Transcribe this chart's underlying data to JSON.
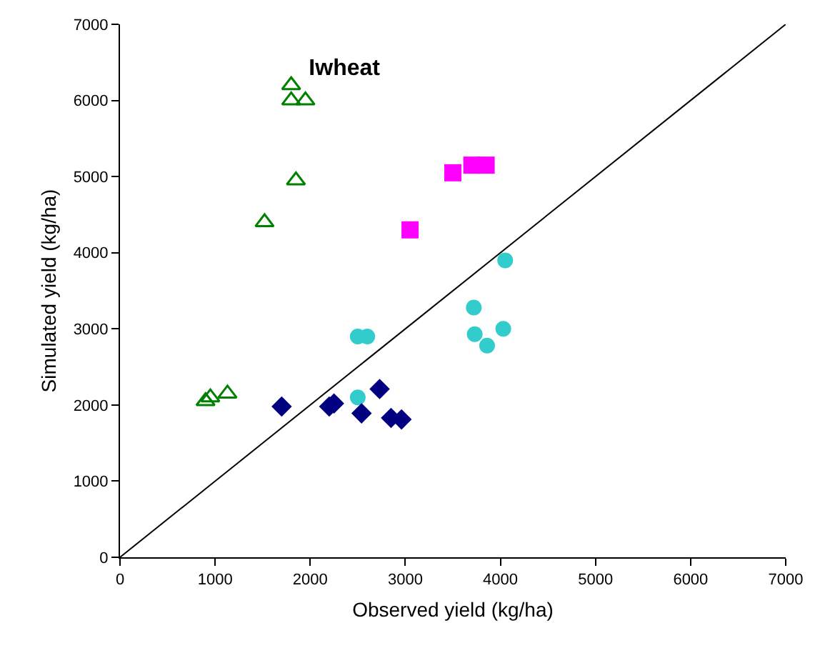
{
  "chart_data": {
    "type": "scatter",
    "title": "Iwheat",
    "xlabel": "Observed yield (kg/ha)",
    "ylabel": "Simulated yield (kg/ha)",
    "xlim": [
      0,
      7000
    ],
    "ylim": [
      0,
      7000
    ],
    "xticks": [
      0,
      1000,
      2000,
      3000,
      4000,
      5000,
      6000,
      7000
    ],
    "yticks": [
      0,
      1000,
      2000,
      3000,
      4000,
      5000,
      6000,
      7000
    ],
    "series": [
      {
        "color": "#008000",
        "marker": "triangle-open",
        "x": [
          1800,
          1800,
          1950,
          1850,
          1520,
          900,
          950,
          1130
        ],
        "values": [
          6200,
          6000,
          6000,
          4950,
          4400,
          2050,
          2100,
          2150
        ]
      },
      {
        "color": "#ff00ff",
        "marker": "square",
        "x": [
          3500,
          3700,
          3850,
          3050
        ],
        "values": [
          5050,
          5150,
          5150,
          4300
        ]
      },
      {
        "color": "#33cccc",
        "marker": "circle",
        "x": [
          2500,
          2600,
          2500,
          4050,
          3720,
          3730,
          3860,
          4030
        ],
        "values": [
          2900,
          2900,
          2100,
          3900,
          3280,
          2930,
          2780,
          3000
        ]
      },
      {
        "color": "#000080",
        "marker": "diamond",
        "x": [
          1700,
          2200,
          2250,
          2540,
          2730,
          2850,
          2960
        ],
        "values": [
          1980,
          1980,
          2020,
          1890,
          2210,
          1830,
          1810
        ]
      },
      {
        "type": "line",
        "color": "#000000",
        "marker": "none",
        "line_style": "solid",
        "x": [
          0,
          7000
        ],
        "values": [
          0,
          7000
        ]
      }
    ]
  }
}
